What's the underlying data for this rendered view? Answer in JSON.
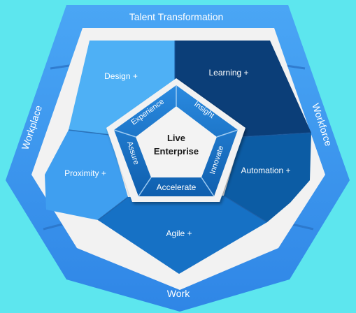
{
  "outer_ring": {
    "top_label": "Talent Transformation",
    "left_label": "Workplace",
    "right_label": "Workforce",
    "bottom_label": "Work"
  },
  "segments": {
    "design": "Design +",
    "learning": "Learning +",
    "proximity": "Proximity +",
    "automation": "Automation +",
    "agile": "Agile +"
  },
  "inner_ring": {
    "experience": "Experience",
    "insight": "Insight",
    "innovate": "Innovate",
    "accelerate": "Accelerate",
    "assure": "Assure"
  },
  "center": {
    "line1": "Live",
    "line2": "Enterprise"
  },
  "colors": {
    "background": "#5de6ee",
    "outer_ring": "#3d96ee",
    "white_band": "#f2f2f2",
    "design": "#4eb0f5",
    "learning": "#0b3e78",
    "proximity": "#3f9ff0",
    "automation": "#0c5ca4",
    "agile": "#1671c5",
    "inner_ring": "#1a76c8",
    "center": "#f3f3f3"
  }
}
